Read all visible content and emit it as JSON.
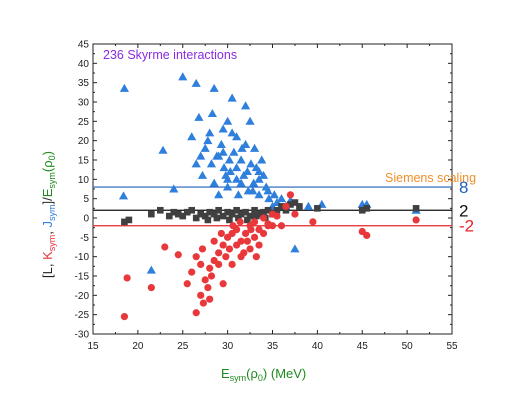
{
  "chart_data": {
    "type": "scatter",
    "xlim": [
      15,
      55
    ],
    "ylim": [
      -30,
      45
    ],
    "xticks": [
      15,
      20,
      25,
      30,
      35,
      40,
      45,
      50,
      55
    ],
    "yticks": [
      -30,
      -25,
      -20,
      -15,
      -10,
      -5,
      0,
      5,
      10,
      15,
      20,
      25,
      30,
      35,
      40,
      45
    ],
    "grid": false,
    "xlabel": "E_sym(ρ0) (MeV)",
    "ylabel": "[L, K_sym, J_sym]/E_sym(ρ0)",
    "colors": {
      "J_sym": "#2f7fdc",
      "L": "#404040",
      "K_sym": "#e8383b",
      "siemens_text": "#f0902a",
      "count_text": "#8a2be2",
      "xlabel": "#1e8a1e"
    },
    "annotations": {
      "count": "236 Skyrme interactions",
      "siemens": "Siemens scaling"
    },
    "hlines": [
      {
        "y": 8,
        "label": "8",
        "color": "#1f5fb8"
      },
      {
        "y": 2,
        "label": "2",
        "color": "#111111"
      },
      {
        "y": -2,
        "label": "-2",
        "color": "#e8252b"
      }
    ],
    "series": [
      {
        "key": "J_sym",
        "marker": "triangle",
        "color": "#2f7fdc",
        "points": [
          [
            18.5,
            33.5
          ],
          [
            18.4,
            5.7
          ],
          [
            21.5,
            -13.5
          ],
          [
            22.8,
            17.5
          ],
          [
            24,
            7.5
          ],
          [
            25,
            36.5
          ],
          [
            26.5,
            34.8
          ],
          [
            28.5,
            33.5
          ],
          [
            28.8,
            16
          ],
          [
            29.5,
            23
          ],
          [
            29.8,
            11
          ],
          [
            30.2,
            15
          ],
          [
            30.5,
            31
          ],
          [
            31,
            13
          ],
          [
            31.5,
            9
          ],
          [
            32,
            29
          ],
          [
            32.5,
            25
          ],
          [
            33,
            18
          ],
          [
            33.5,
            10
          ],
          [
            34.5,
            7
          ],
          [
            35,
            3
          ],
          [
            36,
            5
          ],
          [
            37.5,
            -8
          ],
          [
            39,
            3
          ],
          [
            40.5,
            3.5
          ],
          [
            45,
            3.5
          ],
          [
            45.5,
            3.5
          ],
          [
            51,
            2
          ],
          [
            26,
            21
          ],
          [
            26.8,
            26
          ],
          [
            27.2,
            11
          ],
          [
            27.5,
            18
          ],
          [
            28,
            22
          ],
          [
            28.2,
            14
          ],
          [
            28.5,
            9
          ],
          [
            29,
            6
          ],
          [
            29.3,
            19
          ],
          [
            29.6,
            13
          ],
          [
            30,
            8
          ],
          [
            30.3,
            12
          ],
          [
            30.7,
            17
          ],
          [
            31,
            21
          ],
          [
            31.2,
            6
          ],
          [
            31.5,
            15
          ],
          [
            31.8,
            11
          ],
          [
            32,
            19
          ],
          [
            32.3,
            7
          ],
          [
            32.6,
            14
          ],
          [
            32.9,
            9
          ],
          [
            33.2,
            13
          ],
          [
            33.5,
            6
          ],
          [
            33.8,
            15
          ],
          [
            34,
            11
          ],
          [
            34.3,
            8
          ],
          [
            34.6,
            5
          ],
          [
            35.2,
            6
          ],
          [
            35.5,
            4
          ],
          [
            36.5,
            3
          ],
          [
            37,
            4.5
          ],
          [
            26.5,
            14
          ],
          [
            27,
            16
          ],
          [
            27.8,
            20
          ],
          [
            29,
            16
          ],
          [
            29.5,
            17
          ],
          [
            30,
            10
          ],
          [
            30.5,
            22
          ],
          [
            31,
            10
          ],
          [
            31.6,
            18
          ],
          [
            32.2,
            12
          ],
          [
            32.8,
            7
          ],
          [
            33.5,
            12
          ],
          [
            30,
            25
          ],
          [
            28.3,
            27
          ]
        ]
      },
      {
        "key": "L",
        "marker": "square",
        "color": "#404040",
        "points": [
          [
            18.5,
            -1
          ],
          [
            19,
            -0.5
          ],
          [
            21.5,
            1
          ],
          [
            22.5,
            2
          ],
          [
            23.5,
            0.5
          ],
          [
            24,
            1.5
          ],
          [
            24.5,
            1
          ],
          [
            25,
            0.5
          ],
          [
            25.5,
            1.5
          ],
          [
            26,
            2
          ],
          [
            26.5,
            0
          ],
          [
            27,
            1
          ],
          [
            27.5,
            0.5
          ],
          [
            28,
            1.5
          ],
          [
            28.5,
            1
          ],
          [
            29,
            2
          ],
          [
            29.5,
            0.5
          ],
          [
            30,
            1.5
          ],
          [
            30.5,
            1
          ],
          [
            31,
            2
          ],
          [
            31.5,
            1
          ],
          [
            32,
            1.5
          ],
          [
            32.5,
            0.5
          ],
          [
            33,
            2
          ],
          [
            33.5,
            1
          ],
          [
            34,
            1.5
          ],
          [
            34.5,
            2
          ],
          [
            35,
            1
          ],
          [
            35.5,
            2
          ],
          [
            36,
            3
          ],
          [
            36.5,
            2
          ],
          [
            37,
            3.5
          ],
          [
            37.5,
            4
          ],
          [
            38,
            3
          ],
          [
            40,
            2.5
          ],
          [
            45,
            2
          ],
          [
            45.5,
            2.5
          ],
          [
            51,
            2.5
          ],
          [
            27.8,
            -0.5
          ],
          [
            28.8,
            0
          ],
          [
            30.2,
            -0.5
          ],
          [
            31.2,
            0
          ],
          [
            32.2,
            -0.5
          ],
          [
            33.2,
            0.5
          ],
          [
            34.2,
            0
          ]
        ]
      },
      {
        "key": "K_sym",
        "marker": "circle",
        "color": "#e8383b",
        "points": [
          [
            18.5,
            -25.5
          ],
          [
            18.8,
            -15.5
          ],
          [
            21.5,
            -18
          ],
          [
            23,
            -7.5
          ],
          [
            24.5,
            -9.5
          ],
          [
            25.5,
            -17
          ],
          [
            26.5,
            -24.5
          ],
          [
            27,
            -20
          ],
          [
            27.5,
            -16
          ],
          [
            28,
            -13
          ],
          [
            28.5,
            -11
          ],
          [
            29,
            -9
          ],
          [
            29.5,
            -7
          ],
          [
            30,
            -5
          ],
          [
            30.5,
            -4
          ],
          [
            31,
            -3
          ],
          [
            31.5,
            -6
          ],
          [
            32,
            -4
          ],
          [
            32.5,
            -2
          ],
          [
            33,
            -1
          ],
          [
            33.5,
            -3
          ],
          [
            34,
            0
          ],
          [
            34.5,
            -1.5
          ],
          [
            35,
            -2
          ],
          [
            35.5,
            0.5
          ],
          [
            36,
            -2
          ],
          [
            36.5,
            3
          ],
          [
            37,
            6
          ],
          [
            37.5,
            1
          ],
          [
            39.5,
            -1
          ],
          [
            45,
            -3.5
          ],
          [
            45.5,
            -4.5
          ],
          [
            51,
            -0.5
          ],
          [
            26,
            -14
          ],
          [
            26.5,
            -10
          ],
          [
            27,
            -12
          ],
          [
            27.2,
            -8
          ],
          [
            27.8,
            -18
          ],
          [
            28.2,
            -15
          ],
          [
            28.5,
            -6
          ],
          [
            29,
            -12
          ],
          [
            29.3,
            -4
          ],
          [
            29.8,
            -10
          ],
          [
            30.2,
            -8
          ],
          [
            30.6,
            -2
          ],
          [
            31,
            -7
          ],
          [
            31.4,
            -1
          ],
          [
            31.8,
            -9
          ],
          [
            32.2,
            -6
          ],
          [
            32.6,
            -3
          ],
          [
            33,
            -5
          ],
          [
            33.5,
            -7
          ],
          [
            34,
            -4
          ],
          [
            34.5,
            -2
          ],
          [
            35,
            1
          ],
          [
            29.5,
            -17
          ],
          [
            28,
            -21
          ],
          [
            27.3,
            -22
          ],
          [
            30.5,
            -12
          ],
          [
            31.5,
            -10
          ],
          [
            32.5,
            -8
          ],
          [
            33.2,
            -10
          ]
        ]
      }
    ]
  }
}
